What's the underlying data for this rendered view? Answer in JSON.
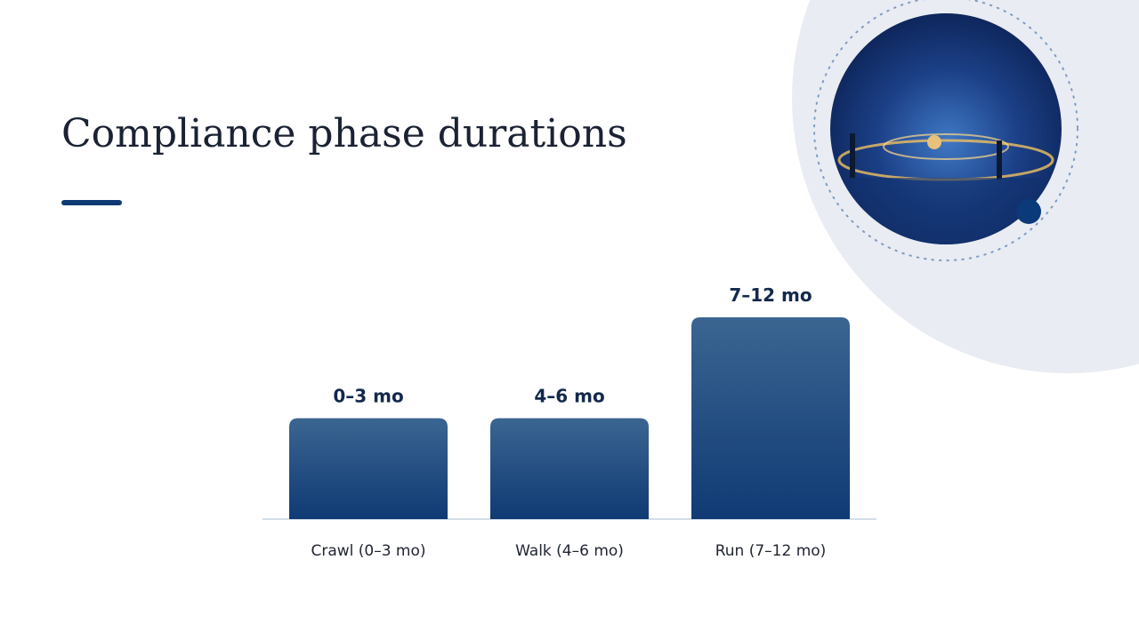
{
  "chart_data": {
    "type": "bar",
    "title": "Compliance phase durations",
    "categories": [
      "Crawl (0–3 mo)",
      "Walk (4–6 mo)",
      "Run (7–12 mo)"
    ],
    "values": [
      3,
      3,
      6
    ],
    "value_labels": [
      "0–3 mo",
      "4–6 mo",
      "7–12 mo"
    ],
    "color": "#0f3a74"
  }
}
